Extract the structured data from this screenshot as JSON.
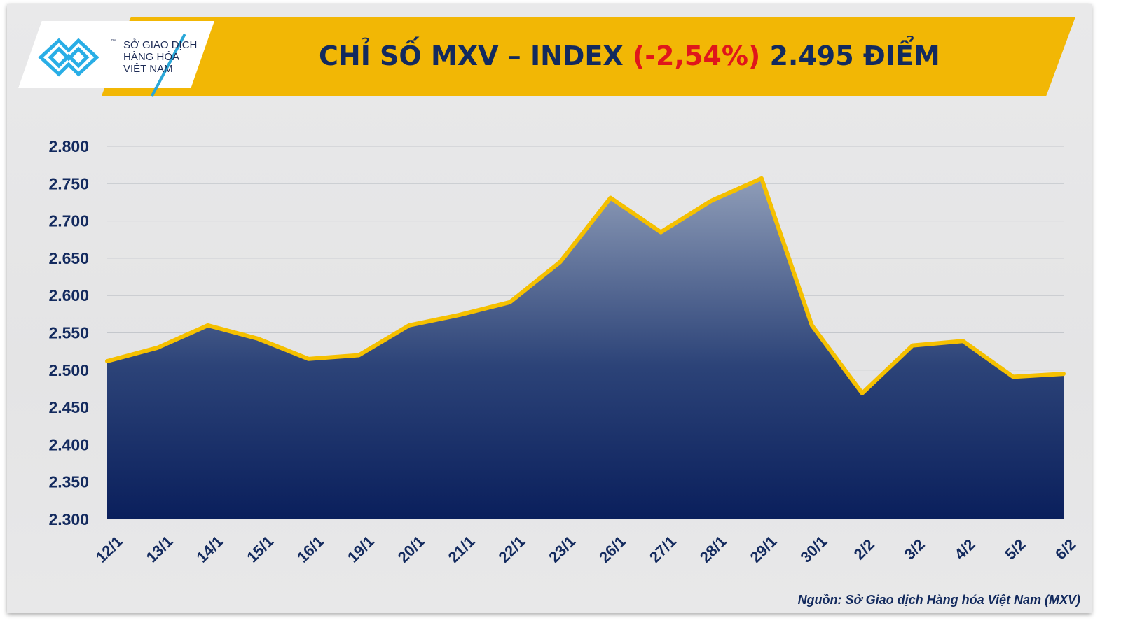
{
  "header": {
    "logo_lines": [
      "SỞ GIAO DỊCH",
      "HÀNG HÓA",
      "VIỆT NAM"
    ],
    "logo_tm": "™",
    "title_prefix": "CHỈ SỐ MXV – INDEX ",
    "title_change": "(-2,54%)",
    "title_suffix": " 2.495 ĐIỂM"
  },
  "source": "Nguồn: Sở Giao dịch Hàng hóa Việt Nam (MXV)",
  "colors": {
    "banner": "#f2b705",
    "line": "#f5c000",
    "fill_top": "#8f9db8",
    "fill_bottom": "#0a1f5c",
    "negative": "#e0161b",
    "text": "#132a5e"
  },
  "chart_data": {
    "type": "area",
    "categories": [
      "12/1",
      "13/1",
      "14/1",
      "15/1",
      "16/1",
      "19/1",
      "20/1",
      "21/1",
      "22/1",
      "23/1",
      "26/1",
      "27/1",
      "28/1",
      "29/1",
      "30/1",
      "2/2",
      "3/2",
      "4/2",
      "5/2",
      "6/2"
    ],
    "values": [
      2512,
      2530,
      2560,
      2542,
      2515,
      2520,
      2560,
      2574,
      2591,
      2645,
      2731,
      2685,
      2727,
      2757,
      2560,
      2469,
      2533,
      2539,
      2491,
      2495
    ],
    "ylim": [
      2300,
      2800
    ],
    "yticks": [
      "2.300",
      "2.350",
      "2.400",
      "2.450",
      "2.500",
      "2.550",
      "2.600",
      "2.650",
      "2.700",
      "2.750",
      "2.800"
    ],
    "grid": true,
    "legend": "none"
  }
}
